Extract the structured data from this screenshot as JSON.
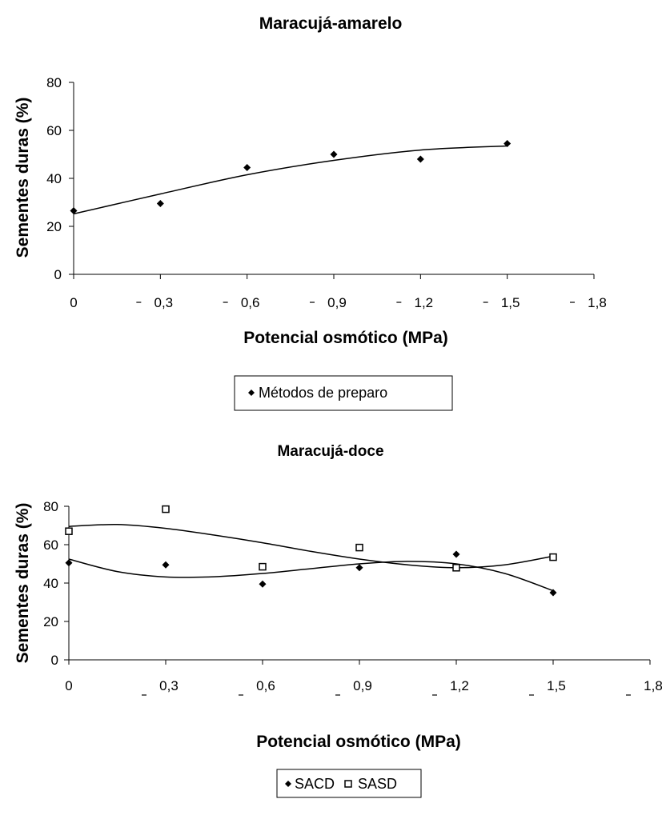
{
  "chart_data": [
    {
      "type": "scatter",
      "title": "Maracujá-amarelo",
      "xlabel": "Potencial osmótico (MPa)",
      "ylabel": "Sementes duras (%)",
      "x_ticks": [
        "0",
        "0,3",
        "0,6",
        "0,9",
        "1,2",
        "1,5",
        "1,8"
      ],
      "x_tick_values": [
        0,
        0.3,
        0.6,
        0.9,
        1.2,
        1.5,
        1.8
      ],
      "y_ticks": [
        "0",
        "20",
        "40",
        "60",
        "80"
      ],
      "xlim": [
        0,
        1.8
      ],
      "ylim": [
        0,
        80
      ],
      "grid": false,
      "legend_position": "bottom",
      "series": [
        {
          "name": "Métodos de preparo",
          "marker": "diamond-filled",
          "x": [
            0,
            0.3,
            0.6,
            0.9,
            1.2,
            1.5
          ],
          "y": [
            26.5,
            29.5,
            44.5,
            50,
            48,
            54.5
          ],
          "trend": [
            [
              0,
              25.2
            ],
            [
              0.3,
              33.5
            ],
            [
              0.6,
              41.5
            ],
            [
              0.9,
              47.5
            ],
            [
              1.2,
              51.8
            ],
            [
              1.5,
              53.5
            ]
          ]
        }
      ]
    },
    {
      "type": "scatter",
      "title": "Maracujá-doce",
      "xlabel": "Potencial osmótico (MPa)",
      "ylabel": "Sementes duras (%)",
      "x_ticks": [
        "0",
        "0,3",
        "0,6",
        "0,9",
        "1,2",
        "1,5",
        "1,8"
      ],
      "x_tick_values": [
        0,
        0.3,
        0.6,
        0.9,
        1.2,
        1.5,
        1.8
      ],
      "y_ticks": [
        "0",
        "20",
        "40",
        "60",
        "80"
      ],
      "xlim": [
        0,
        1.8
      ],
      "ylim": [
        0,
        80
      ],
      "grid": false,
      "legend_position": "bottom",
      "series": [
        {
          "name": "SACD",
          "marker": "diamond-filled",
          "x": [
            0,
            0.3,
            0.6,
            0.9,
            1.2,
            1.5
          ],
          "y": [
            50.5,
            49.5,
            39.5,
            48,
            55,
            35
          ],
          "trend": [
            [
              0,
              52.5
            ],
            [
              0.15,
              46
            ],
            [
              0.3,
              43.2
            ],
            [
              0.45,
              43.3
            ],
            [
              0.6,
              45
            ],
            [
              0.75,
              47.5
            ],
            [
              0.9,
              50
            ],
            [
              1.05,
              51.3
            ],
            [
              1.2,
              50
            ],
            [
              1.35,
              45
            ],
            [
              1.5,
              36
            ]
          ]
        },
        {
          "name": "SASD",
          "marker": "square-open",
          "x": [
            0,
            0.3,
            0.6,
            0.9,
            1.2,
            1.5
          ],
          "y": [
            67,
            78.5,
            48.5,
            58.5,
            48,
            53.5
          ],
          "trend": [
            [
              0,
              69.5
            ],
            [
              0.15,
              70.5
            ],
            [
              0.3,
              68.5
            ],
            [
              0.45,
              65
            ],
            [
              0.6,
              61
            ],
            [
              0.75,
              56.5
            ],
            [
              0.9,
              52.5
            ],
            [
              1.05,
              49.5
            ],
            [
              1.2,
              48
            ],
            [
              1.35,
              49.5
            ],
            [
              1.5,
              54
            ]
          ]
        }
      ]
    }
  ]
}
